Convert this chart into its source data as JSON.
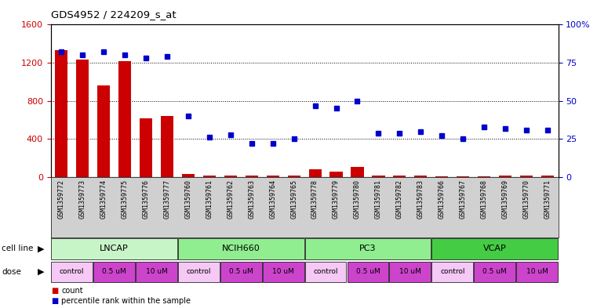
{
  "title": "GDS4952 / 224209_s_at",
  "samples": [
    "GSM1359772",
    "GSM1359773",
    "GSM1359774",
    "GSM1359775",
    "GSM1359776",
    "GSM1359777",
    "GSM1359760",
    "GSM1359761",
    "GSM1359762",
    "GSM1359763",
    "GSM1359764",
    "GSM1359765",
    "GSM1359778",
    "GSM1359779",
    "GSM1359780",
    "GSM1359781",
    "GSM1359782",
    "GSM1359783",
    "GSM1359766",
    "GSM1359767",
    "GSM1359768",
    "GSM1359769",
    "GSM1359770",
    "GSM1359771"
  ],
  "counts": [
    1330,
    1230,
    960,
    1220,
    620,
    640,
    30,
    20,
    20,
    15,
    20,
    15,
    80,
    60,
    110,
    15,
    15,
    15,
    10,
    10,
    10,
    15,
    15,
    15
  ],
  "percentile": [
    82,
    80,
    82,
    80,
    78,
    79,
    40,
    26,
    28,
    22,
    22,
    25,
    47,
    45,
    50,
    29,
    29,
    30,
    27,
    25,
    33,
    32,
    31,
    31
  ],
  "cell_lines": [
    {
      "label": "LNCAP",
      "start": 0,
      "end": 6,
      "color": "#c8f0c8"
    },
    {
      "label": "NCIH660",
      "start": 6,
      "end": 12,
      "color": "#90EE90"
    },
    {
      "label": "PC3",
      "start": 12,
      "end": 18,
      "color": "#90EE90"
    },
    {
      "label": "VCAP",
      "start": 18,
      "end": 24,
      "color": "#44cc44"
    }
  ],
  "doses": [
    {
      "label": "control",
      "start": 0,
      "end": 2,
      "color": "#f0c8f0"
    },
    {
      "label": "0.5 uM",
      "start": 2,
      "end": 4,
      "color": "#dd44dd"
    },
    {
      "label": "10 uM",
      "start": 4,
      "end": 6,
      "color": "#dd44dd"
    },
    {
      "label": "control",
      "start": 6,
      "end": 8,
      "color": "#f0c8f0"
    },
    {
      "label": "0.5 uM",
      "start": 8,
      "end": 10,
      "color": "#dd44dd"
    },
    {
      "label": "10 uM",
      "start": 10,
      "end": 12,
      "color": "#dd44dd"
    },
    {
      "label": "control",
      "start": 12,
      "end": 14,
      "color": "#f0c8f0"
    },
    {
      "label": "0.5 uM",
      "start": 14,
      "end": 16,
      "color": "#dd44dd"
    },
    {
      "label": "10 uM",
      "start": 16,
      "end": 18,
      "color": "#dd44dd"
    },
    {
      "label": "control",
      "start": 18,
      "end": 20,
      "color": "#f0c8f0"
    },
    {
      "label": "0.5 uM",
      "start": 20,
      "end": 22,
      "color": "#dd44dd"
    },
    {
      "label": "10 uM",
      "start": 22,
      "end": 24,
      "color": "#dd44dd"
    }
  ],
  "bar_color": "#CC0000",
  "dot_color": "#0000CC",
  "bg_color": "#ffffff",
  "ylim_left": [
    0,
    1600
  ],
  "ylim_right": [
    0,
    100
  ],
  "yticks_left": [
    0,
    400,
    800,
    1200,
    1600
  ],
  "yticks_right": [
    0,
    25,
    50,
    75,
    100
  ],
  "ylabel_left_color": "#CC0000",
  "ylabel_right_color": "#0000CC",
  "xtick_bg_color": "#d0d0d0"
}
